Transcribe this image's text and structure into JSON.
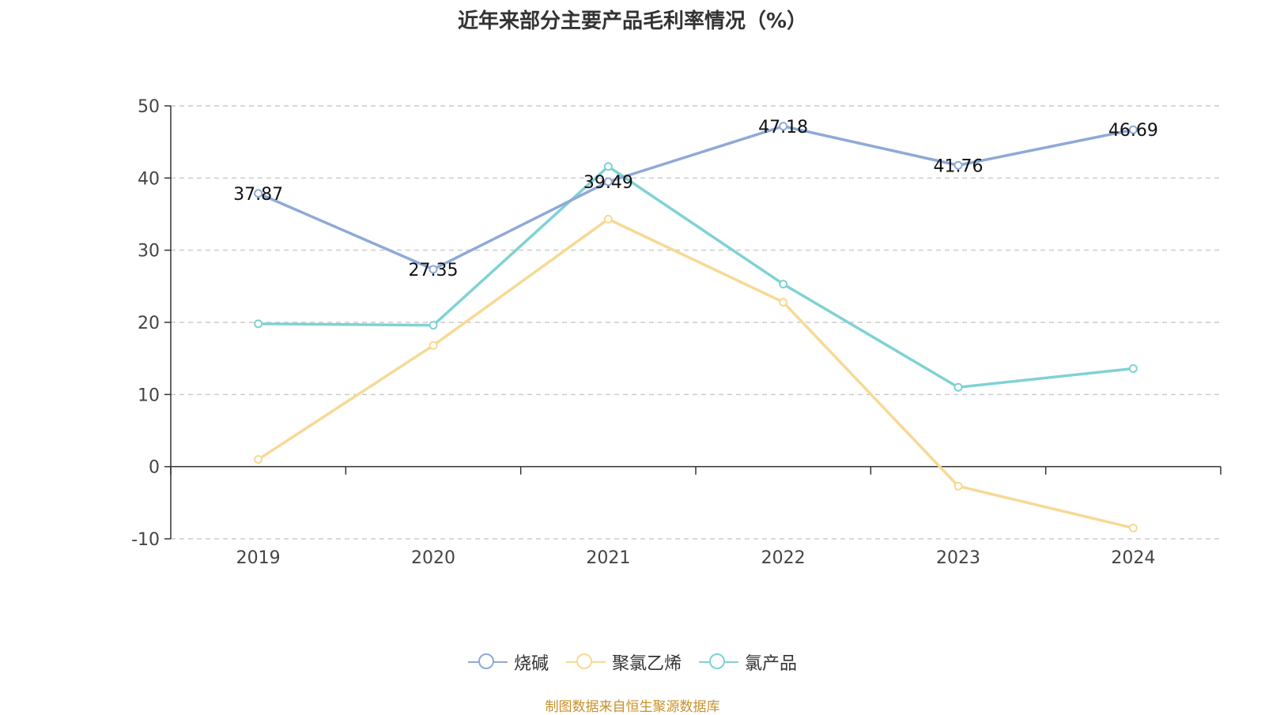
{
  "title": "近年来部分主要产品毛利率情况（%）",
  "source": "制图数据来自恒生聚源数据库",
  "colors": {
    "烧碱": "#8fa9d8",
    "聚氯乙烯": "#f7d993",
    "氯产品": "#7fd2d4",
    "grid": "#cccccc",
    "axis": "#333333",
    "source": "#c8912b"
  },
  "chart_data": {
    "type": "line",
    "title": "近年来部分主要产品毛利率情况（%）",
    "categories": [
      "2019",
      "2020",
      "2021",
      "2022",
      "2023",
      "2024"
    ],
    "ylim": [
      -10,
      50
    ],
    "yticks": [
      "50",
      "40",
      "30",
      "20",
      "10",
      "0",
      "-10"
    ],
    "grid": "horizontal dashed",
    "legend_position": "bottom",
    "series": [
      {
        "name": "烧碱",
        "values": [
          37.87,
          27.35,
          39.49,
          47.18,
          41.76,
          46.69
        ],
        "labels": [
          "37.87",
          "27.35",
          "39.49",
          "47.18",
          "41.76",
          "46.69"
        ]
      },
      {
        "name": "聚氯乙烯",
        "values": [
          1.0,
          16.8,
          34.3,
          22.8,
          -2.7,
          -8.5
        ]
      },
      {
        "name": "氯产品",
        "values": [
          19.8,
          19.6,
          41.6,
          25.3,
          11.0,
          13.6
        ]
      }
    ]
  }
}
